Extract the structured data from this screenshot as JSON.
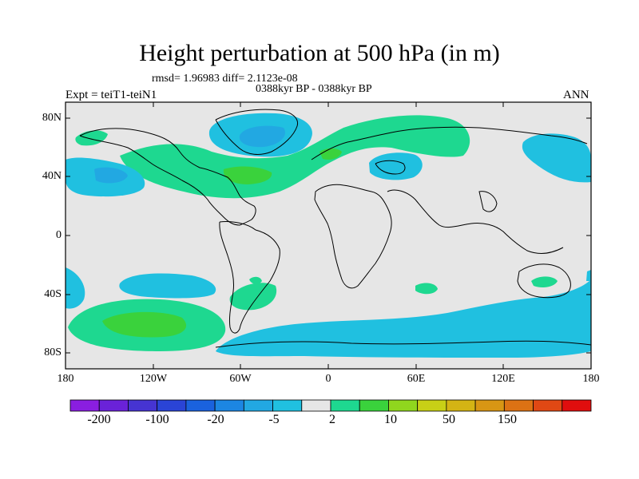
{
  "title": "Height perturbation at 500 hPa (in m)",
  "stats_line": "rmsd= 1.96983 diff= 2.1123e-08",
  "period": "0388kyr BP - 0388kyr BP",
  "experiment": "Expt = teiT1-teiN1",
  "season": "ANN",
  "lat_labels": [
    "80N",
    "40N",
    "0",
    "40S",
    "80S"
  ],
  "lon_labels": [
    "180",
    "120W",
    "60W",
    "0",
    "60E",
    "120E",
    "180"
  ],
  "colorbar": {
    "colors": [
      "#8a1ee0",
      "#6a22d8",
      "#4634d2",
      "#2a44d6",
      "#1a62de",
      "#1c86e2",
      "#22a8e2",
      "#20c0e0",
      "#e6e6e6",
      "#1ed890",
      "#3ad23c",
      "#90d61e",
      "#c8d016",
      "#d4b414",
      "#d89614",
      "#dc7214",
      "#e04814",
      "#e00e0e"
    ],
    "labels": [
      "-200",
      "-100",
      "-20",
      "-5",
      "2",
      "10",
      "50",
      "150"
    ]
  },
  "colors": {
    "background": "#e6e6e6",
    "pos_light": "#1ed890",
    "pos_mid": "#3ad23c",
    "pos_strong": "#62d828",
    "neg_light": "#20c0e0",
    "neg_mid": "#22a8e2",
    "neg_dark": "#1c86e2"
  }
}
